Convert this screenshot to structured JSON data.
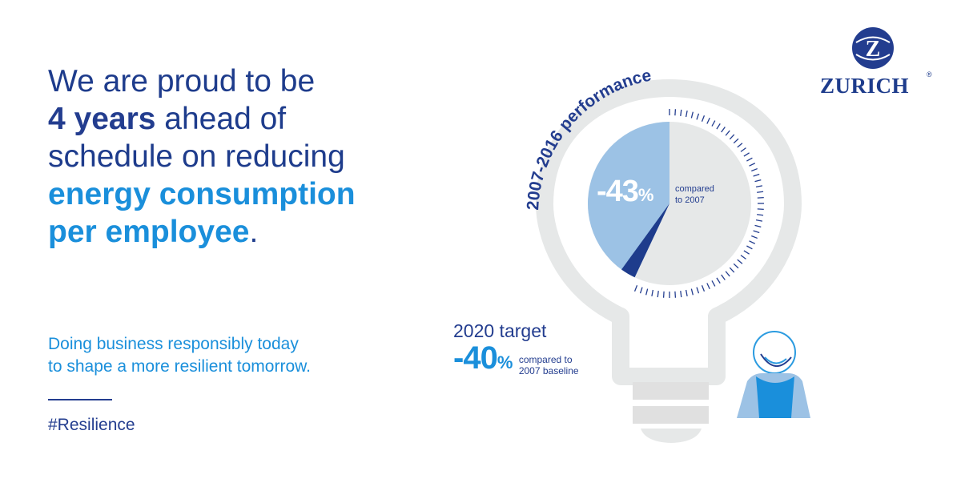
{
  "headline": {
    "line1": "We are proud to be",
    "line2_bold": "4 years",
    "line2_rest": " ahead of",
    "line3": "schedule on reducing",
    "line4": "energy consumption",
    "line5": "per employee",
    "line5_end": "."
  },
  "subheading": {
    "line1": "Doing business responsibly today",
    "line2": "to shape a more resilient tomorrow."
  },
  "hashtag": "#Resilience",
  "brand": {
    "name": "ZURICH",
    "registered": "®",
    "logo_letter": "Z"
  },
  "performance": {
    "arc_label": "2007-2016 performance",
    "value": "-43",
    "unit": "%",
    "compared_line1": "compared",
    "compared_line2": "to 2007",
    "reduction_fraction": 0.43
  },
  "target": {
    "label": "2020 target",
    "value": "-40",
    "unit": "%",
    "compared_line1": "compared to",
    "compared_line2": "2007 baseline",
    "reduction_fraction": 0.4
  },
  "colors": {
    "dark_blue": "#233d8f",
    "bright_blue": "#1a8fdb",
    "pale_blue": "#9cc2e5",
    "light_grey": "#e6e8e8",
    "mid_grey": "#d3d3d3"
  },
  "icons": [
    "zurich-logo-icon",
    "lightbulb-icon",
    "person-icon"
  ]
}
